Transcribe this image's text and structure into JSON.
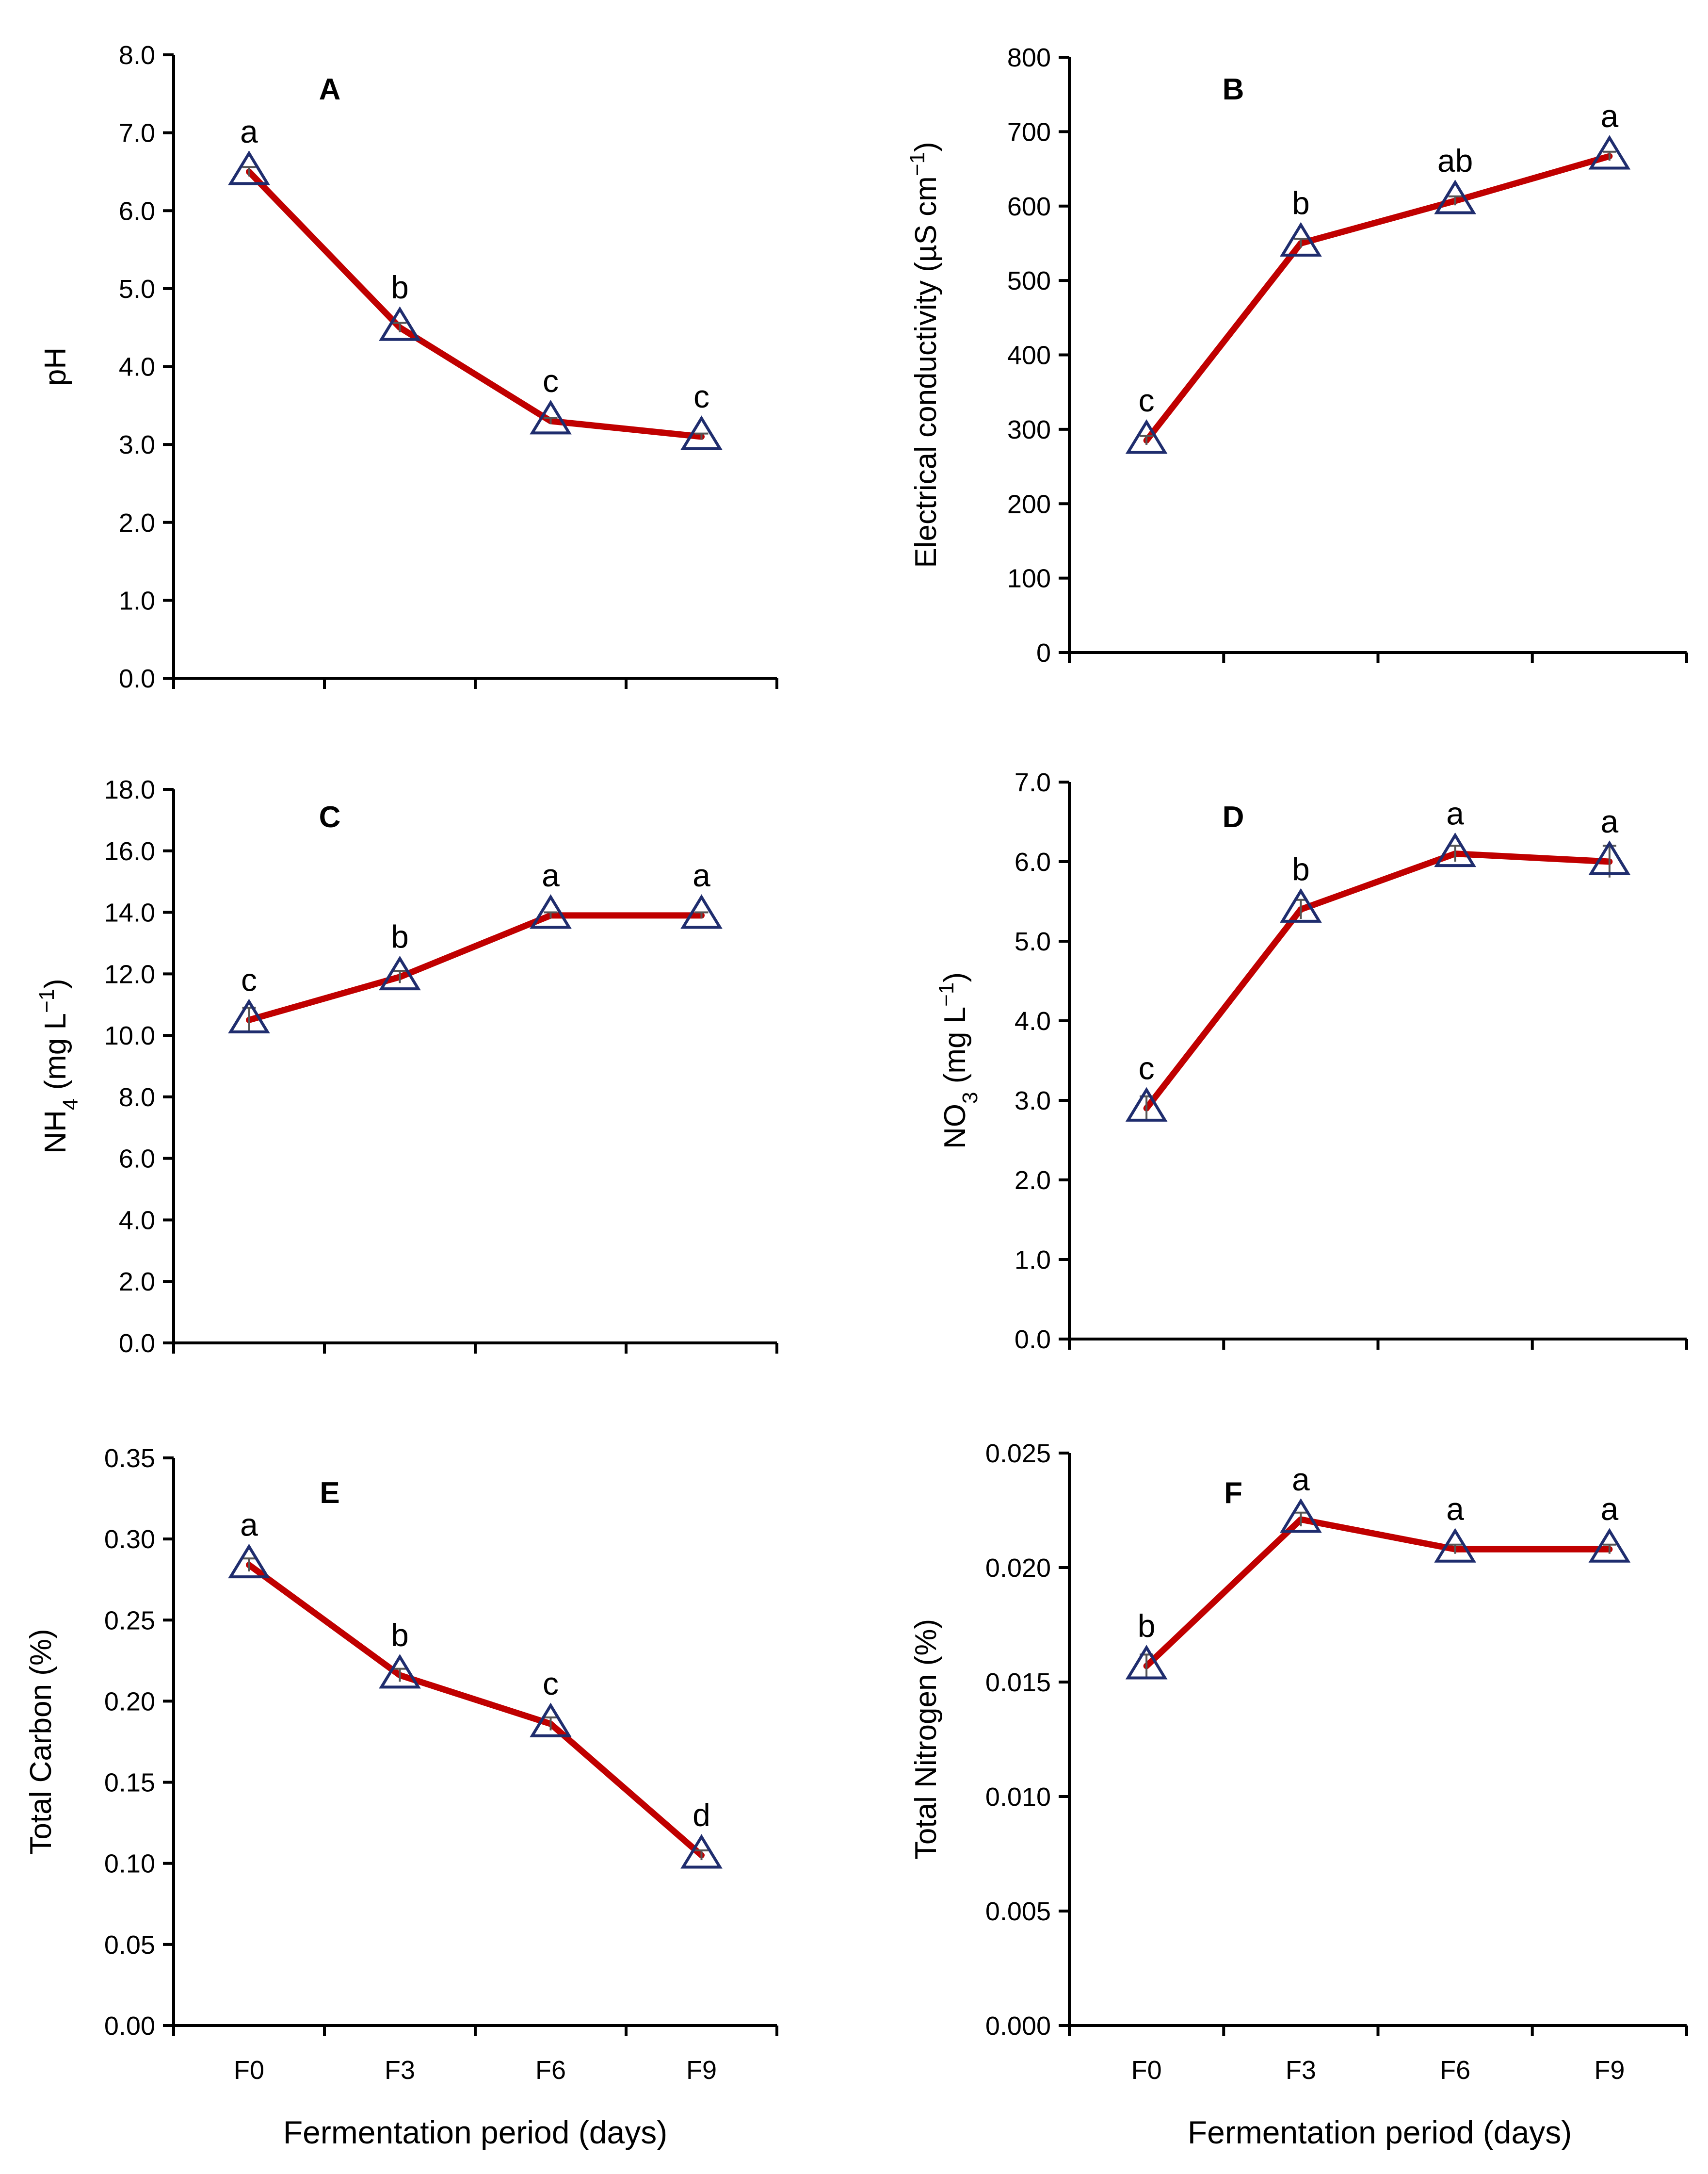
{
  "colors": {
    "line": "#C00000",
    "marker": "#1F2D6E",
    "axis": "#000000",
    "errorbar": "#555555"
  },
  "x_axis": {
    "categories": [
      "F0",
      "F3",
      "F6",
      "F9"
    ],
    "title": "Fermentation period (days)"
  },
  "chart_data": [
    {
      "id": "A",
      "type": "line",
      "panel_label": "A",
      "ylabel": "pH",
      "ylabel_sub": "",
      "ylabel_rest": "",
      "ylim": [
        0,
        8
      ],
      "yticks": [
        "0.0",
        "1.0",
        "2.0",
        "3.0",
        "4.0",
        "5.0",
        "6.0",
        "7.0",
        "8.0"
      ],
      "categories": [
        "F0",
        "F3",
        "F6",
        "F9"
      ],
      "values": [
        6.5,
        4.5,
        3.3,
        3.1
      ],
      "errors": [
        0.06,
        0.06,
        0.04,
        0.04
      ],
      "letters": [
        "a",
        "b",
        "c",
        "c"
      ],
      "show_xticklabels": false
    },
    {
      "id": "B",
      "type": "line",
      "panel_label": "B",
      "ylabel": "Electrical conductivity (µS cm",
      "ylabel_sup": "−1",
      "ylabel_end": ")",
      "ylim": [
        0,
        800
      ],
      "yticks": [
        "0",
        "100",
        "200",
        "300",
        "400",
        "500",
        "600",
        "700",
        "800"
      ],
      "categories": [
        "F0",
        "F3",
        "F6",
        "F9"
      ],
      "values": [
        285,
        550,
        607,
        667
      ],
      "errors": [
        6,
        6,
        6,
        6
      ],
      "letters": [
        "c",
        "b",
        "ab",
        "a"
      ],
      "show_xticklabels": false
    },
    {
      "id": "C",
      "type": "line",
      "panel_label": "C",
      "ylabel": "NH",
      "ylabel_sub": "4",
      "ylabel_rest": " (mg L",
      "ylabel_sup": "−1",
      "ylabel_end": ")",
      "ylim": [
        0,
        18
      ],
      "yticks": [
        "0.0",
        "2.0",
        "4.0",
        "6.0",
        "8.0",
        "10.0",
        "12.0",
        "14.0",
        "16.0",
        "18.0"
      ],
      "categories": [
        "F0",
        "F3",
        "F6",
        "F9"
      ],
      "values": [
        10.5,
        11.9,
        13.9,
        13.9
      ],
      "errors": [
        0.4,
        0.2,
        0.1,
        0.1
      ],
      "letters": [
        "c",
        "b",
        "a",
        "a"
      ],
      "show_xticklabels": false
    },
    {
      "id": "D",
      "type": "line",
      "panel_label": "D",
      "ylabel": "NO",
      "ylabel_sub": "3",
      "ylabel_rest": " (mg L",
      "ylabel_sup": "−1",
      "ylabel_end": ")",
      "ylim": [
        0,
        7
      ],
      "yticks": [
        "0.0",
        "1.0",
        "2.0",
        "3.0",
        "4.0",
        "5.0",
        "6.0",
        "7.0"
      ],
      "categories": [
        "F0",
        "F3",
        "F6",
        "F9"
      ],
      "values": [
        2.9,
        5.4,
        6.1,
        6.0
      ],
      "errors": [
        0.15,
        0.12,
        0.1,
        0.2
      ],
      "letters": [
        "c",
        "b",
        "a",
        "a"
      ],
      "show_xticklabels": false
    },
    {
      "id": "E",
      "type": "line",
      "panel_label": "E",
      "ylabel": "Total Carbon (%)",
      "ylabel_sub": "",
      "ylabel_rest": "",
      "ylim": [
        0,
        0.35
      ],
      "yticks": [
        "0.00",
        "0.05",
        "0.10",
        "0.15",
        "0.20",
        "0.25",
        "0.30",
        "0.35"
      ],
      "categories": [
        "F0",
        "F3",
        "F6",
        "F9"
      ],
      "values": [
        0.284,
        0.216,
        0.186,
        0.105
      ],
      "errors": [
        0.004,
        0.004,
        0.004,
        0.003
      ],
      "letters": [
        "a",
        "b",
        "c",
        "d"
      ],
      "show_xticklabels": true
    },
    {
      "id": "F",
      "type": "line",
      "panel_label": "F",
      "ylabel": "Total Nitrogen (%)",
      "ylabel_sub": "",
      "ylabel_rest": "",
      "ylim": [
        0,
        0.025
      ],
      "yticks": [
        "0.000",
        "0.005",
        "0.010",
        "0.015",
        "0.020",
        "0.025"
      ],
      "categories": [
        "F0",
        "F3",
        "F6",
        "F9"
      ],
      "values": [
        0.0157,
        0.0221,
        0.0208,
        0.0208
      ],
      "errors": [
        0.0005,
        0.0003,
        0.0002,
        0.0002
      ],
      "letters": [
        "b",
        "a",
        "a",
        "a"
      ],
      "show_xticklabels": true
    }
  ]
}
